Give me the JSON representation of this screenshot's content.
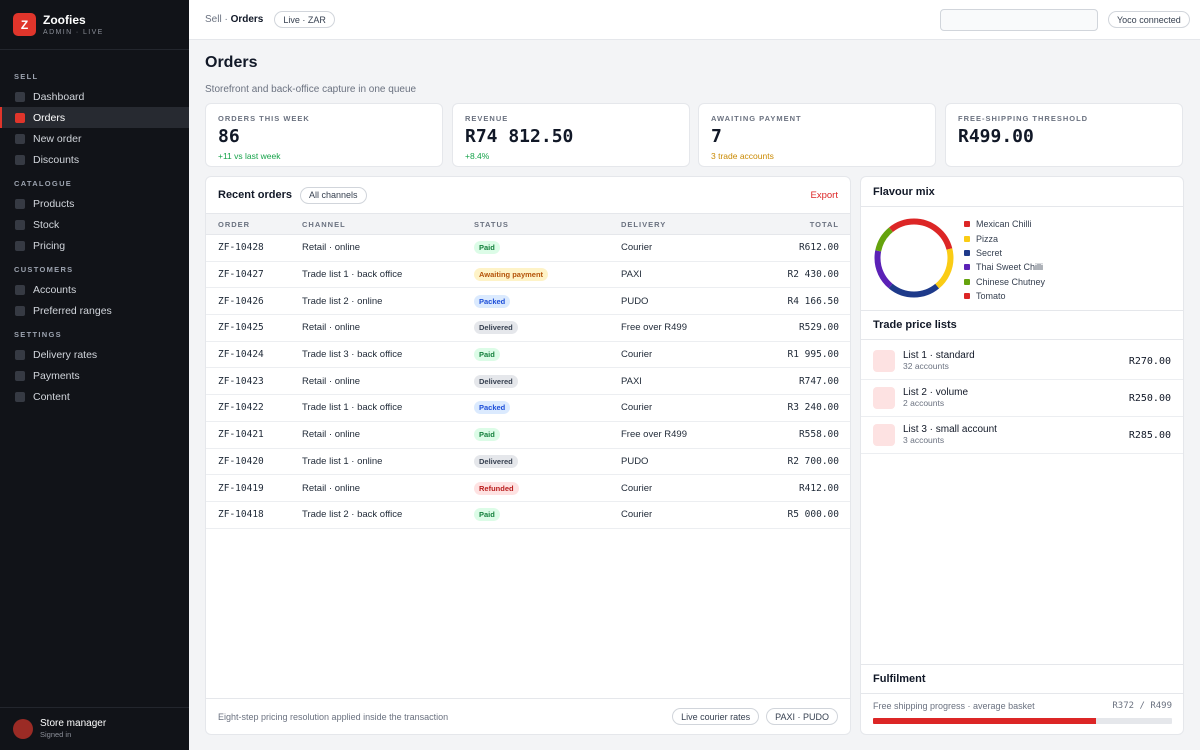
{
  "brand": {
    "initial": "Z",
    "name": "Zoofies",
    "sub": "ADMIN · LIVE"
  },
  "sidebar": {
    "sections": [
      {
        "title": "SELL",
        "items": [
          "Dashboard",
          "Orders",
          "New order",
          "Discounts"
        ]
      },
      {
        "title": "CATALOGUE",
        "items": [
          "Products",
          "Stock",
          "Pricing"
        ]
      },
      {
        "title": "CUSTOMERS",
        "items": [
          "Accounts",
          "Preferred ranges"
        ]
      },
      {
        "title": "SETTINGS",
        "items": [
          "Delivery rates",
          "Payments",
          "Content"
        ]
      }
    ],
    "active": "Orders"
  },
  "user": {
    "name": "Store manager",
    "status": "Signed in"
  },
  "topbar": {
    "crumb_parent": "Sell",
    "crumb_sep": " · ",
    "crumb_current": "Orders",
    "live_pill": "Live · ZAR",
    "search_value": "",
    "yoco": "Yoco connected"
  },
  "page": {
    "title": "Orders",
    "subtitle": "Storefront and back-office capture in one queue"
  },
  "stats": [
    {
      "label": "ORDERS THIS WEEK",
      "value": "86",
      "note": "+11 vs last week",
      "note_tone": "green"
    },
    {
      "label": "REVENUE",
      "value": "R74 812.50",
      "note": "+8.4%",
      "note_tone": "green"
    },
    {
      "label": "AWAITING PAYMENT",
      "value": "7",
      "note": "3 trade accounts",
      "note_tone": "amber"
    },
    {
      "label": "FREE-SHIPPING THRESHOLD",
      "value": "R499.00",
      "note": "",
      "note_tone": ""
    }
  ],
  "orders": {
    "title": "Recent orders",
    "filter": "All channels",
    "export": "Export",
    "columns": [
      "ORDER",
      "CHANNEL",
      "STATUS",
      "DELIVERY",
      "TOTAL"
    ],
    "rows": [
      {
        "order": "ZF-10428",
        "channel": "Retail · online",
        "status": "Paid",
        "delivery": "Courier",
        "total": "R612.00"
      },
      {
        "order": "ZF-10427",
        "channel": "Trade list 1 · back office",
        "status": "Awaiting payment",
        "delivery": "PAXI",
        "total": "R2 430.00"
      },
      {
        "order": "ZF-10426",
        "channel": "Trade list 2 · online",
        "status": "Packed",
        "delivery": "PUDO",
        "total": "R4 166.50"
      },
      {
        "order": "ZF-10425",
        "channel": "Retail · online",
        "status": "Delivered",
        "delivery": "Free over R499",
        "total": "R529.00"
      },
      {
        "order": "ZF-10424",
        "channel": "Trade list 3 · back office",
        "status": "Paid",
        "delivery": "Courier",
        "total": "R1 995.00"
      },
      {
        "order": "ZF-10423",
        "channel": "Retail · online",
        "status": "Delivered",
        "delivery": "PAXI",
        "total": "R747.00"
      },
      {
        "order": "ZF-10422",
        "channel": "Trade list 1 · back office",
        "status": "Packed",
        "delivery": "Courier",
        "total": "R3 240.00"
      },
      {
        "order": "ZF-10421",
        "channel": "Retail · online",
        "status": "Paid",
        "delivery": "Free over R499",
        "total": "R558.00"
      },
      {
        "order": "ZF-10420",
        "channel": "Trade list 1 · online",
        "status": "Delivered",
        "delivery": "PUDO",
        "total": "R2 700.00"
      },
      {
        "order": "ZF-10419",
        "channel": "Retail · online",
        "status": "Refunded",
        "delivery": "Courier",
        "total": "R412.00"
      },
      {
        "order": "ZF-10418",
        "channel": "Trade list 2 · back office",
        "status": "Paid",
        "delivery": "Courier",
        "total": "R5 000.00"
      }
    ],
    "footer_note": "Eight-step pricing resolution applied inside the transaction",
    "footer_pills": [
      "Live courier rates",
      "PAXI · PUDO"
    ]
  },
  "flavour": {
    "title": "Flavour mix",
    "items": [
      {
        "name": "Mexican Chilli",
        "color": "#dc2626",
        "share": 0.21
      },
      {
        "name": "Pizza",
        "color": "#facc15",
        "share": 0.18
      },
      {
        "name": "Secret",
        "color": "#1e3a8a",
        "share": 0.22
      },
      {
        "name": "Thai Sweet Chilli",
        "color": "#5b21b6",
        "share": 0.17
      },
      {
        "name": "Chinese Chutney",
        "color": "#65a30d",
        "share": 0.11
      },
      {
        "name": "Tomato",
        "color": "#dc2626",
        "share": 0.11
      }
    ]
  },
  "trade": {
    "title": "Trade price lists",
    "lists": [
      {
        "name": "List 1 · standard",
        "sub": "32 accounts",
        "price": "R270.00"
      },
      {
        "name": "List 2 · volume",
        "sub": "2 accounts",
        "price": "R250.00"
      },
      {
        "name": "List 3 · small account",
        "sub": "3 accounts",
        "price": "R285.00"
      }
    ]
  },
  "fulfilment": {
    "title": "Fulfilment",
    "label": "Free shipping progress · average basket",
    "value": "R372 / R499",
    "progress": 0.745,
    "color": "#dc2626"
  }
}
